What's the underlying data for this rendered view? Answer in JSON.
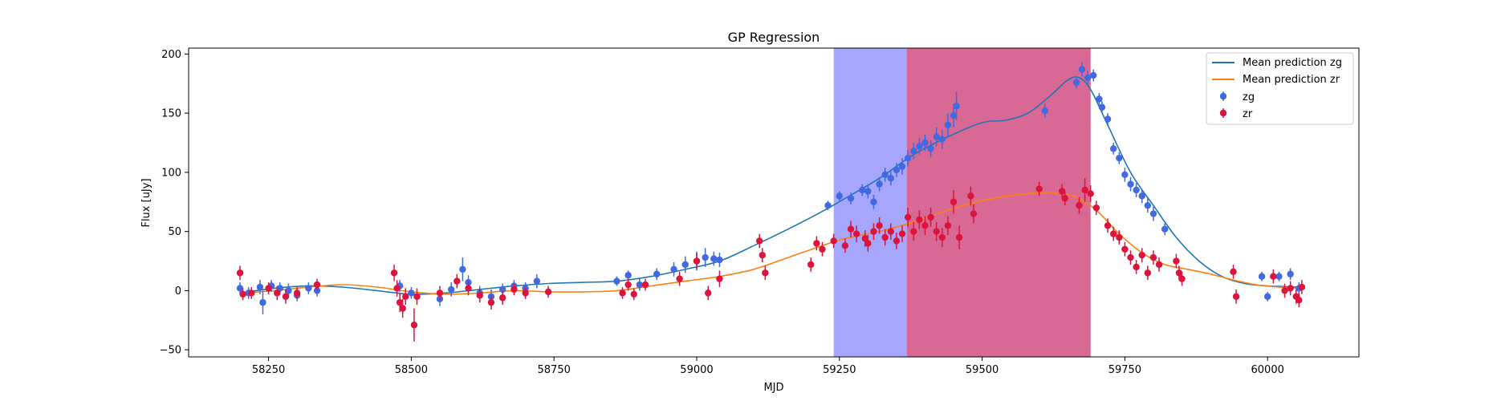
{
  "chart_data": {
    "type": "scatter",
    "title": "GP Regression",
    "xlabel": "MJD",
    "ylabel": "Flux [uJy]",
    "xlim": [
      58110,
      60160
    ],
    "ylim": [
      -56,
      205
    ],
    "xticks": [
      58250,
      58500,
      58750,
      59000,
      59250,
      59500,
      59750,
      60000
    ],
    "yticks": [
      -50,
      0,
      50,
      100,
      150,
      200
    ],
    "grid": false,
    "legend_position": "top-right",
    "shaded_regions": [
      {
        "x0": 59240,
        "x1": 59368,
        "color": "#0000ff",
        "opacity": 0.35
      },
      {
        "x0": 59368,
        "x1": 59690,
        "color": "#c2185b",
        "opacity": 0.65
      }
    ],
    "mean_predictions": [
      {
        "name": "Mean prediction zg",
        "color": "#1f77b4",
        "x": [
          58200,
          58260,
          58320,
          58380,
          58440,
          58500,
          58560,
          58620,
          58680,
          58740,
          58800,
          58860,
          58920,
          58980,
          59040,
          59100,
          59160,
          59220,
          59260,
          59320,
          59380,
          59440,
          59500,
          59540,
          59580,
          59620,
          59650,
          59670,
          59690,
          59720,
          59760,
          59800,
          59840,
          59880,
          59920,
          59960,
          60000,
          60060
        ],
        "y": [
          -2,
          2,
          4,
          3,
          0,
          -3,
          -2,
          1,
          4,
          6,
          7,
          8,
          12,
          18,
          25,
          38,
          52,
          67,
          78,
          95,
          115,
          130,
          142,
          144,
          150,
          165,
          178,
          180,
          170,
          140,
          100,
          72,
          45,
          25,
          12,
          6,
          4,
          3
        ]
      },
      {
        "name": "Mean prediction zr",
        "color": "#ff7f0e",
        "x": [
          58200,
          58260,
          58320,
          58380,
          58440,
          58500,
          58560,
          58620,
          58680,
          58740,
          58800,
          58860,
          58920,
          58980,
          59040,
          59100,
          59160,
          59220,
          59260,
          59320,
          59380,
          59440,
          59500,
          59560,
          59620,
          59660,
          59700,
          59740,
          59780,
          59820,
          59860,
          59900,
          59940,
          59980,
          60020,
          60060
        ],
        "y": [
          -2,
          0,
          3,
          5,
          3,
          -1,
          -3,
          -2,
          0,
          -1,
          -1,
          0,
          4,
          8,
          12,
          18,
          28,
          38,
          44,
          50,
          58,
          68,
          76,
          81,
          83,
          80,
          68,
          48,
          32,
          22,
          18,
          14,
          9,
          5,
          3,
          2
        ]
      }
    ],
    "series": [
      {
        "name": "zg",
        "color": "#4169e1",
        "x": [
          58200,
          58215,
          58235,
          58240,
          58255,
          58270,
          58285,
          58300,
          58320,
          58335,
          58480,
          58500,
          58550,
          58570,
          58590,
          58600,
          58620,
          58640,
          58660,
          58680,
          58700,
          58720,
          58860,
          58880,
          58900,
          58930,
          58960,
          58980,
          59000,
          59015,
          59030,
          59040,
          59230,
          59250,
          59270,
          59290,
          59300,
          59310,
          59320,
          59330,
          59340,
          59350,
          59360,
          59370,
          59380,
          59390,
          59400,
          59410,
          59420,
          59430,
          59440,
          59450,
          59455,
          59610,
          59665,
          59675,
          59685,
          59695,
          59705,
          59710,
          59720,
          59730,
          59740,
          59750,
          59760,
          59770,
          59780,
          59790,
          59800,
          59820,
          59990,
          60000,
          60020,
          60040,
          60055
        ],
        "y": [
          2,
          -2,
          3,
          -10,
          4,
          2,
          0,
          -4,
          2,
          0,
          4,
          -2,
          -7,
          1,
          18,
          7,
          -2,
          -5,
          1,
          4,
          2,
          8,
          8,
          13,
          5,
          14,
          18,
          22,
          25,
          28,
          27,
          26,
          72,
          80,
          78,
          85,
          84,
          75,
          90,
          98,
          95,
          102,
          105,
          112,
          118,
          122,
          125,
          120,
          130,
          128,
          140,
          148,
          156,
          152,
          176,
          187,
          180,
          182,
          162,
          155,
          145,
          120,
          112,
          98,
          90,
          85,
          80,
          72,
          65,
          52,
          12,
          -5,
          12,
          14,
          2
        ],
        "err": [
          5,
          5,
          6,
          10,
          5,
          5,
          6,
          5,
          5,
          5,
          5,
          5,
          6,
          6,
          10,
          6,
          6,
          6,
          5,
          5,
          5,
          6,
          4,
          4,
          5,
          5,
          6,
          7,
          8,
          8,
          6,
          6,
          4,
          4,
          5,
          5,
          6,
          6,
          6,
          6,
          6,
          6,
          7,
          7,
          7,
          7,
          7,
          7,
          8,
          8,
          10,
          10,
          12,
          6,
          5,
          6,
          6,
          5,
          5,
          5,
          5,
          5,
          5,
          6,
          6,
          6,
          6,
          6,
          6,
          5,
          4,
          4,
          4,
          5,
          5
        ]
      },
      {
        "name": "zr",
        "color": "#dc143c",
        "x": [
          58200,
          58205,
          58220,
          58250,
          58265,
          58280,
          58300,
          58335,
          58470,
          58475,
          58480,
          58485,
          58490,
          58505,
          58510,
          58550,
          58580,
          58600,
          58620,
          58640,
          58660,
          58680,
          58700,
          58740,
          58870,
          58880,
          58890,
          58910,
          58970,
          59000,
          59020,
          59040,
          59110,
          59115,
          59120,
          59200,
          59210,
          59220,
          59240,
          59260,
          59270,
          59280,
          59295,
          59300,
          59310,
          59320,
          59330,
          59340,
          59350,
          59360,
          59370,
          59380,
          59390,
          59400,
          59410,
          59420,
          59430,
          59440,
          59450,
          59460,
          59480,
          59485,
          59600,
          59640,
          59645,
          59670,
          59680,
          59690,
          59700,
          59720,
          59730,
          59740,
          59750,
          59760,
          59770,
          59780,
          59790,
          59800,
          59810,
          59840,
          59845,
          59850,
          59940,
          59945,
          60010,
          60030,
          60040,
          60050,
          60055,
          60060
        ],
        "y": [
          15,
          -3,
          -2,
          2,
          -2,
          -5,
          -2,
          5,
          15,
          2,
          -10,
          -15,
          -5,
          -29,
          -5,
          -2,
          8,
          2,
          -4,
          -10,
          -6,
          1,
          -2,
          -1,
          -2,
          5,
          -3,
          5,
          10,
          25,
          -2,
          10,
          42,
          30,
          15,
          22,
          40,
          35,
          42,
          38,
          52,
          48,
          44,
          40,
          50,
          55,
          45,
          50,
          42,
          48,
          62,
          50,
          60,
          55,
          62,
          50,
          45,
          55,
          75,
          45,
          80,
          65,
          86,
          84,
          78,
          72,
          85,
          82,
          70,
          55,
          48,
          45,
          35,
          28,
          20,
          30,
          15,
          28,
          22,
          25,
          15,
          10,
          16,
          -5,
          12,
          0,
          2,
          -5,
          -8,
          3
        ],
        "err": [
          6,
          5,
          5,
          5,
          6,
          6,
          5,
          5,
          7,
          7,
          8,
          8,
          7,
          14,
          7,
          6,
          6,
          6,
          6,
          6,
          6,
          5,
          5,
          5,
          5,
          5,
          5,
          5,
          6,
          7,
          6,
          7,
          6,
          6,
          6,
          6,
          6,
          6,
          6,
          6,
          7,
          7,
          7,
          7,
          7,
          7,
          7,
          7,
          7,
          7,
          8,
          8,
          8,
          8,
          8,
          8,
          8,
          8,
          10,
          10,
          8,
          8,
          6,
          6,
          6,
          7,
          10,
          7,
          6,
          6,
          6,
          6,
          6,
          6,
          6,
          6,
          6,
          6,
          6,
          6,
          6,
          6,
          6,
          6,
          6,
          6,
          6,
          6,
          6,
          6
        ]
      }
    ]
  }
}
